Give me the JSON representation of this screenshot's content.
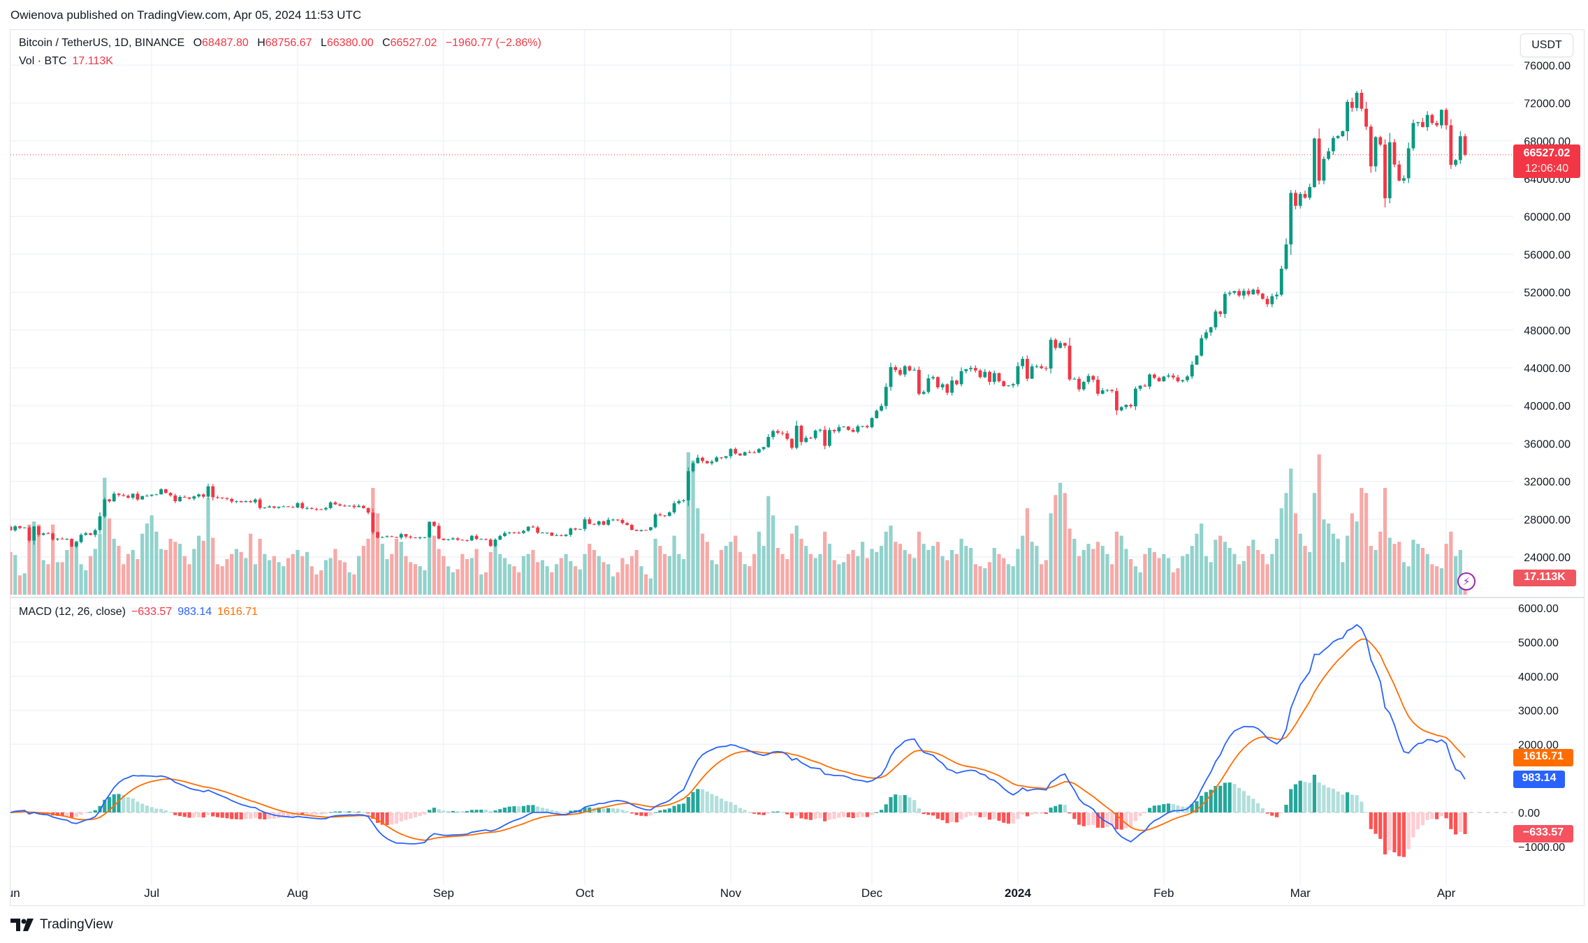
{
  "header": {
    "published": "Owienova published on TradingView.com, Apr 05, 2024 11:53 UTC"
  },
  "legend": {
    "symbol": "Bitcoin / TetherUS, 1D, BINANCE",
    "o_label": "O",
    "o": "68487.80",
    "h_label": "H",
    "h": "68756.67",
    "l_label": "L",
    "l": "66380.00",
    "c_label": "C",
    "c": "66527.02",
    "change": "−1960.77 (−2.86%)",
    "vol_label": "Vol · BTC",
    "vol": "17.113K",
    "macd_label": "MACD (12, 26, close)",
    "macd_hist": "−633.57",
    "macd_line": "983.14",
    "macd_signal": "1616.71"
  },
  "currency_button": "USDT",
  "price_tag": {
    "price": "66527.02",
    "countdown": "12:06:40"
  },
  "volume_tag": "17.113K",
  "macd_tags": {
    "signal": "1616.71",
    "macd": "983.14",
    "hist": "−633.57"
  },
  "footer": {
    "brand": "TradingView"
  },
  "colors": {
    "up": "#089981",
    "down": "#f23645",
    "vol_up": "#92d2cc",
    "vol_down": "#f7a9a7",
    "macd": "#2962ff",
    "signal": "#ff6d00",
    "hist_up_grow": "#26a69a",
    "hist_up_fall": "#b2dfdb",
    "hist_down_grow": "#ffcdd2",
    "hist_down_fall": "#ff5252"
  },
  "chart_data": [
    {
      "type": "candlestick",
      "title": "Bitcoin / TetherUS, 1D, BINANCE",
      "ylim": [
        22000,
        77000
      ],
      "y_ticks": [
        "76000.00",
        "72000.00",
        "68000.00",
        "64000.00",
        "60000.00",
        "56000.00",
        "52000.00",
        "48000.00",
        "44000.00",
        "40000.00",
        "36000.00",
        "32000.00",
        "28000.00",
        "24000.00"
      ],
      "x_ticks": [
        "Jun",
        "Jul",
        "Aug",
        "Sep",
        "Oct",
        "Nov",
        "Dec",
        "2024",
        "Feb",
        "Mar",
        "Apr"
      ],
      "grid": true,
      "last_price": 66527.02,
      "first_open": 27210,
      "closes": {
        "2023-06": [
          26820,
          27250,
          27070,
          27120,
          25740,
          27230,
          26340,
          26500,
          26480,
          25850,
          25940,
          25900,
          25920,
          25120,
          25580,
          26340,
          26510,
          26340,
          26840,
          28310,
          30090,
          29890,
          30690,
          30550,
          30470,
          30270,
          30690,
          30080,
          30450,
          30470
        ],
        "2023-07": [
          30590,
          30620,
          31160,
          30770,
          30510,
          29900,
          30350,
          30290,
          30170,
          30410,
          30620,
          30380,
          31470,
          30320,
          30290,
          30230,
          30140,
          29860,
          29910,
          29800,
          29900,
          29790,
          30080,
          29180,
          29230,
          29350,
          29210,
          29320,
          29350,
          29280,
          29230
        ],
        "2023-08": [
          29700,
          29170,
          29180,
          29080,
          29050,
          29040,
          29180,
          29770,
          29560,
          29430,
          29400,
          29420,
          29280,
          29410,
          29170,
          28700,
          26620,
          26050,
          26100,
          26190,
          26120,
          26050,
          26430,
          26160,
          26060,
          26010,
          26090,
          26100,
          27720,
          27300,
          25940
        ],
        "2023-09": [
          25800,
          25870,
          25970,
          25820,
          25780,
          25750,
          26240,
          25900,
          25900,
          25840,
          25160,
          25840,
          26220,
          26530,
          26600,
          26570,
          26530,
          26760,
          27210,
          27130,
          26570,
          26580,
          26580,
          26250,
          26300,
          26220,
          26350,
          27020,
          26910,
          26970
        ],
        "2023-10": [
          27990,
          27500,
          27430,
          27780,
          27410,
          27930,
          27950,
          27920,
          27590,
          27390,
          26870,
          26760,
          26860,
          26850,
          27150,
          28500,
          28400,
          28330,
          28720,
          29680,
          29910,
          29990,
          33070,
          33920,
          34500,
          34150,
          33910,
          34090,
          34530,
          34490,
          34660
        ],
        "2023-11": [
          35420,
          34940,
          34730,
          35080,
          35050,
          35040,
          35420,
          35620,
          36690,
          37320,
          37130,
          37070,
          36490,
          35550,
          37880,
          36160,
          36600,
          36570,
          37360,
          37450,
          35760,
          37420,
          37290,
          37720,
          37790,
          37450,
          37240,
          37820,
          37850,
          37720
        ],
        "2023-12": [
          38690,
          39470,
          39970,
          41990,
          44080,
          43770,
          43290,
          44170,
          43720,
          43790,
          41240,
          41450,
          42890,
          43020,
          41940,
          42260,
          41370,
          42660,
          42270,
          43650,
          43860,
          43990,
          43720,
          43010,
          43580,
          42520,
          43440,
          42580,
          42070,
          42140,
          42280
        ],
        "2024-01": [
          44180,
          44950,
          42850,
          44150,
          44160,
          43970,
          43930,
          46970,
          46110,
          46630,
          46340,
          42780,
          42840,
          41730,
          42510,
          43140,
          42740,
          41260,
          41620,
          41670,
          41550,
          39510,
          39850,
          40080,
          39930,
          41800,
          42120,
          42030,
          43300,
          42940,
          42580
        ],
        "2024-02": [
          43080,
          43190,
          42990,
          42580,
          42700,
          43090,
          44340,
          45290,
          47130,
          47750,
          48290,
          49960,
          49700,
          51810,
          51930,
          52120,
          51640,
          52140,
          51780,
          52260,
          51850,
          51300,
          50730,
          51570,
          51730,
          54480,
          57050,
          62500,
          61130
        ],
        "2024-03": [
          62390,
          61990,
          63110,
          68250,
          63800,
          66100,
          66900,
          68300,
          68500,
          69020,
          72120,
          71480,
          73080,
          71400,
          69500,
          65300,
          68390,
          67610,
          61930,
          67850,
          65500,
          63800,
          64050,
          67210,
          69880,
          69990,
          69450,
          70740,
          69890,
          69640,
          71280
        ],
        "2024-04": [
          69650,
          65460,
          65970,
          68487.8,
          66527.02
        ]
      },
      "last_candle": {
        "open": 68487.8,
        "high": 68756.67,
        "low": 66380.0,
        "close": 66527.02
      }
    },
    {
      "type": "bar",
      "title": "Vol · BTC",
      "unit": "K",
      "volumes": {
        "2023-06": [
          42,
          39,
          19,
          21,
          69,
          72,
          69,
          34,
          30,
          69,
          32,
          32,
          44,
          48,
          53,
          30,
          24,
          38,
          45,
          60,
          115,
          75,
          55,
          48,
          30,
          40,
          44,
          35,
          60,
          70
        ],
        "2023-07": [
          78,
          62,
          45,
          44,
          55,
          52,
          50,
          38,
          30,
          45,
          58,
          53,
          95,
          56,
          30,
          28,
          35,
          40,
          45,
          42,
          36,
          60,
          30,
          55,
          40,
          34,
          38,
          32,
          28,
          36,
          40
        ],
        "2023-08": [
          44,
          38,
          42,
          28,
          20,
          24,
          34,
          36,
          45,
          34,
          32,
          22,
          20,
          38,
          48,
          55,
          105,
          80,
          50,
          35,
          40,
          55,
          52,
          38,
          32,
          30,
          28,
          24,
          60,
          58,
          45
        ],
        "2023-09": [
          38,
          28,
          22,
          25,
          40,
          35,
          36,
          45,
          20,
          22,
          42,
          48,
          40,
          36,
          30,
          28,
          22,
          38,
          40,
          44,
          32,
          34,
          28,
          22,
          30,
          36,
          40,
          33,
          28,
          25
        ],
        "2023-10": [
          40,
          50,
          44,
          38,
          32,
          30,
          18,
          22,
          36,
          30,
          38,
          44,
          28,
          20,
          16,
          55,
          48,
          40,
          38,
          58,
          40,
          35,
          140,
          132,
          85,
          60,
          52,
          34,
          30,
          44,
          48
        ],
        "2023-11": [
          52,
          58,
          42,
          30,
          28,
          40,
          62,
          48,
          97,
          78,
          46,
          40,
          35,
          60,
          68,
          55,
          48,
          40,
          36,
          40,
          62,
          50,
          34,
          30,
          32,
          40,
          44,
          38,
          52,
          36
        ],
        "2023-12": [
          45,
          42,
          48,
          62,
          68,
          52,
          50,
          44,
          40,
          36,
          62,
          50,
          44,
          48,
          52,
          38,
          34,
          44,
          40,
          55,
          48,
          46,
          30,
          28,
          26,
          32,
          46,
          40,
          36,
          30,
          28
        ],
        "2024-01": [
          45,
          58,
          85,
          52,
          48,
          30,
          34,
          80,
          98,
          110,
          100,
          65,
          55,
          38,
          44,
          50,
          45,
          52,
          48,
          40,
          30,
          62,
          58,
          45,
          35,
          28,
          22,
          40,
          46,
          42,
          36
        ],
        "2024-02": [
          40,
          36,
          22,
          26,
          38,
          40,
          48,
          60,
          70,
          38,
          32,
          54,
          58,
          52,
          46,
          40,
          30,
          33,
          48,
          54,
          44,
          40,
          30,
          40,
          55,
          85,
          100,
          124,
          80
        ],
        "2024-03": [
          60,
          48,
          42,
          100,
          138,
          74,
          70,
          60,
          55,
          32,
          58,
          80,
          72,
          105,
          100,
          48,
          44,
          62,
          105,
          56,
          50,
          52,
          32,
          28,
          54,
          50,
          46,
          40,
          30,
          28,
          26
        ],
        "2024-04": [
          50,
          62,
          38,
          44,
          17.113
        ]
      }
    },
    {
      "type": "line",
      "title": "MACD (12, 26, close)",
      "params": {
        "fast": 12,
        "slow": 26,
        "signal": 9,
        "source": "close"
      },
      "ylim": [
        -1800,
        6300
      ],
      "y_ticks": [
        "6000.00",
        "5000.00",
        "4000.00",
        "3000.00",
        "2000.00",
        "0.00",
        "−1000.00"
      ],
      "last": {
        "histogram": -633.57,
        "macd": 983.14,
        "signal": 1616.71
      }
    }
  ]
}
